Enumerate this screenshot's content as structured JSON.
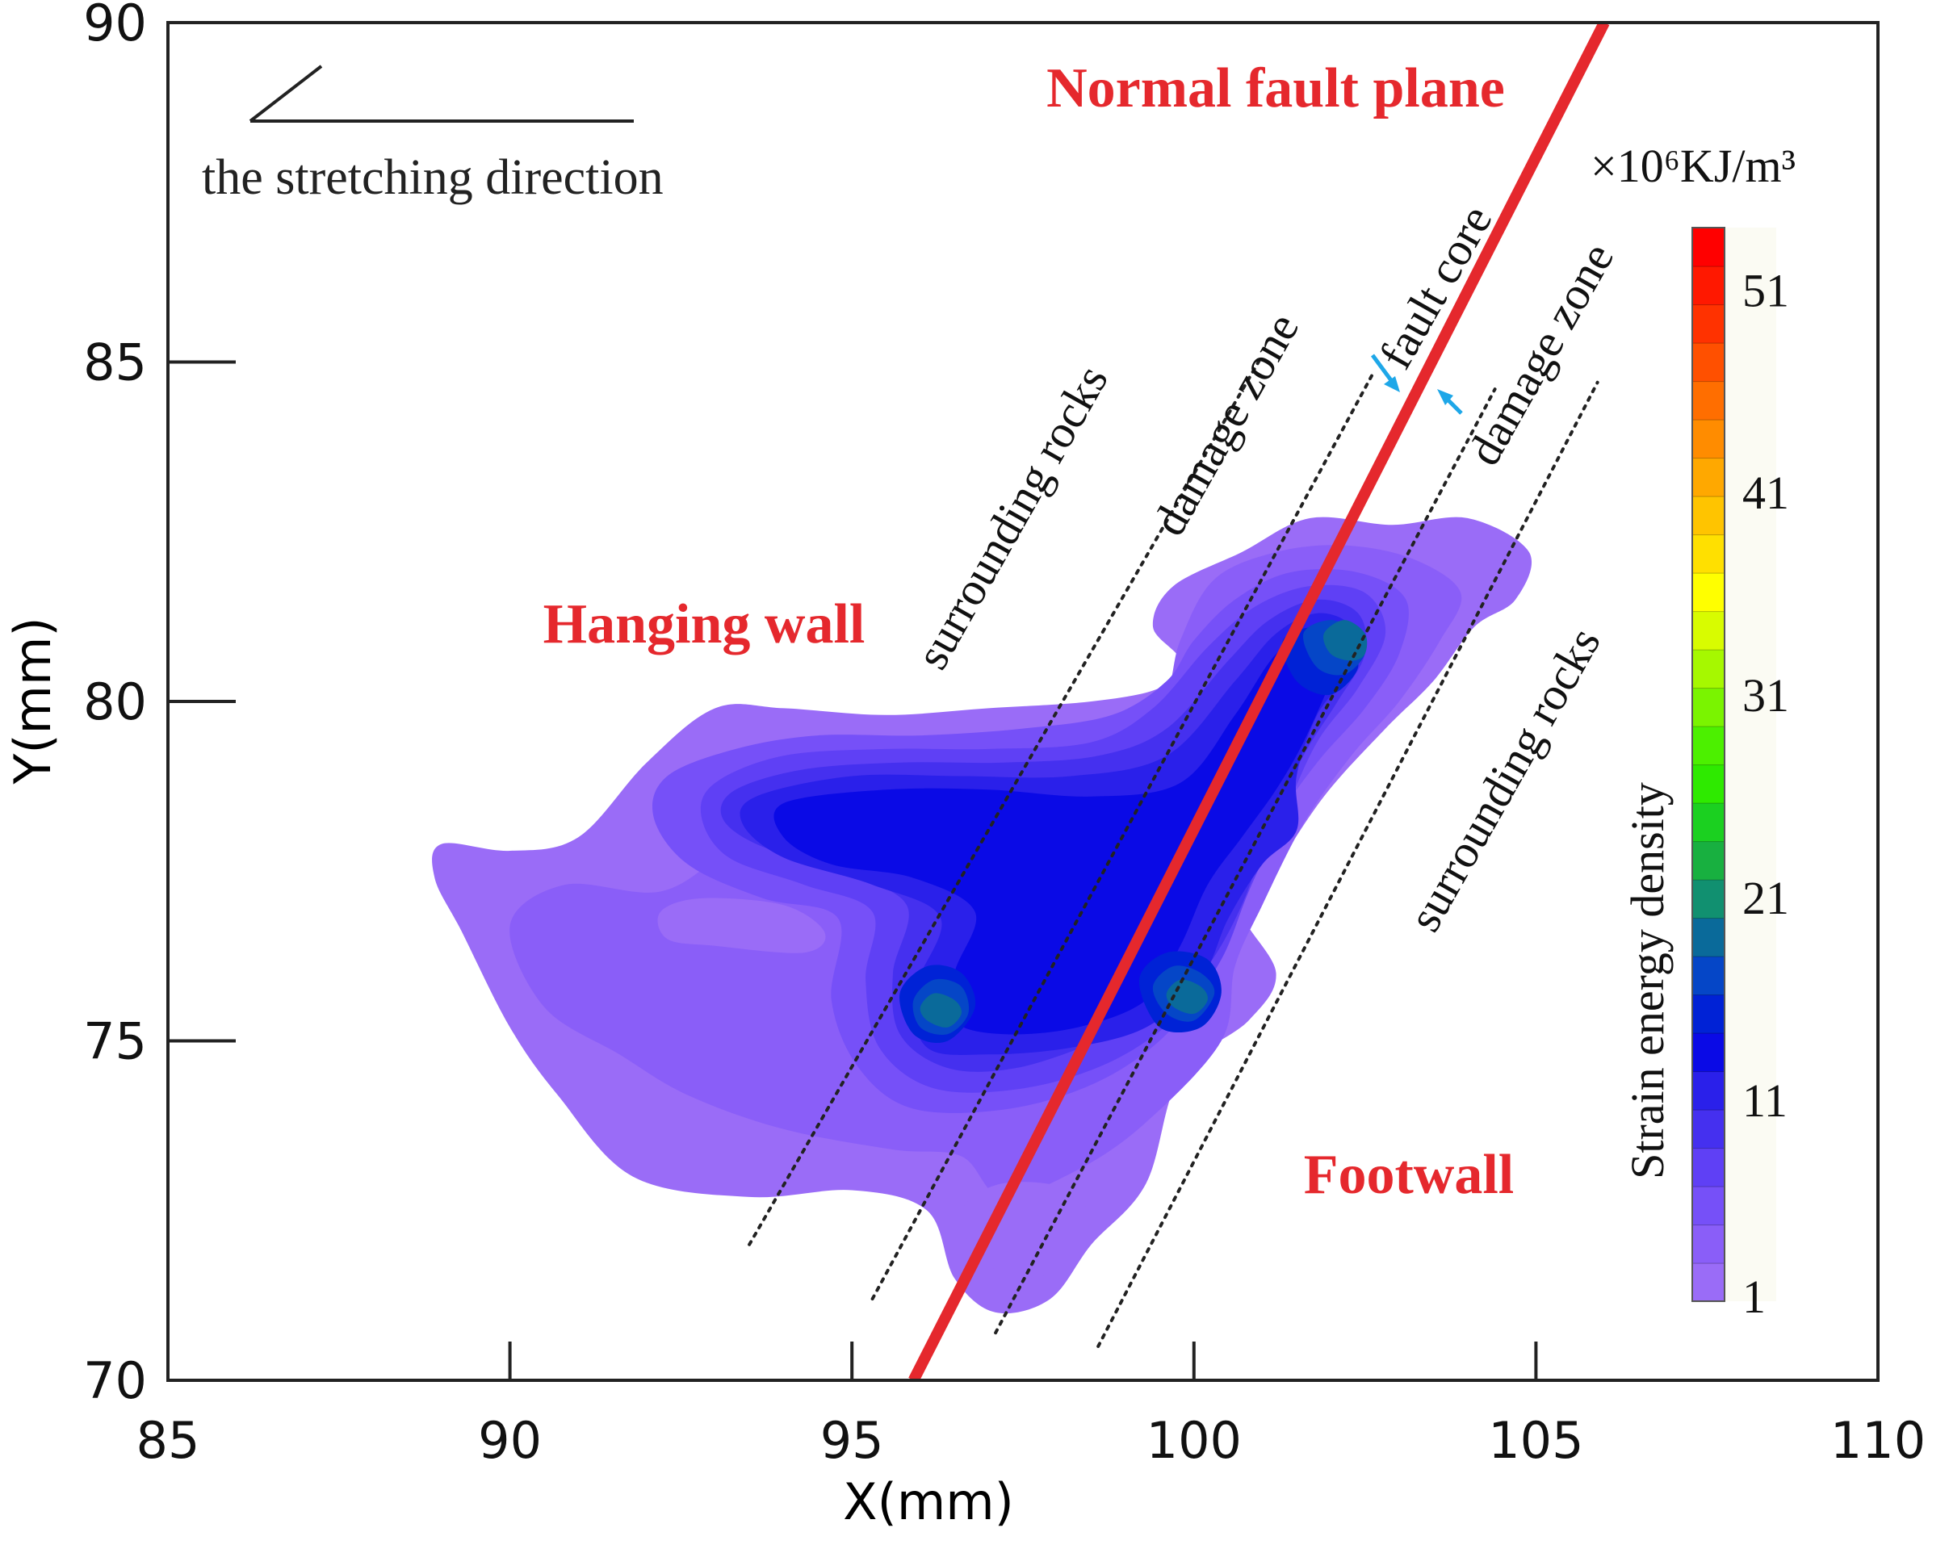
{
  "chart_data": {
    "type": "heatmap",
    "title": "",
    "xlabel": "X(mm)",
    "ylabel": "Y(mm)",
    "xlim": [
      85,
      110
    ],
    "ylim": [
      70,
      90
    ],
    "x_ticks": [
      85,
      90,
      95,
      100,
      105,
      110
    ],
    "y_ticks": [
      70,
      75,
      80,
      85,
      90
    ],
    "x_tick_labels": [
      "85",
      "90",
      "95",
      "100",
      "105",
      "110"
    ],
    "y_tick_labels": [
      "70",
      "75",
      "80",
      "85",
      "90"
    ],
    "colorbar": {
      "title": "Strain energy density",
      "unit": "×10⁶KJ/m³",
      "min": 1,
      "max": 54,
      "tick_values": [
        1,
        11,
        21,
        31,
        41,
        51
      ],
      "tick_labels": [
        "1",
        "11",
        "21",
        "31",
        "41",
        "51"
      ],
      "levels": [
        "#9a6cf7",
        "#8a5ef8",
        "#7650f8",
        "#5f40f5",
        "#4530ef",
        "#2a20ea",
        "#0a0ae6",
        "#0022d6",
        "#0546c7",
        "#0a6a9a",
        "#119070",
        "#18b040",
        "#1bd020",
        "#2eea00",
        "#4cf000",
        "#7af400",
        "#a6f800",
        "#d8fc00",
        "#ffff00",
        "#ffe000",
        "#ffc400",
        "#ffa800",
        "#ff8c00",
        "#ff6e00",
        "#ff5000",
        "#ff3200",
        "#ff1800",
        "#ff0000"
      ]
    },
    "fault_plane": {
      "label": "Normal fault plane",
      "line": [
        [
          95.9,
          70.0
        ],
        [
          106.0,
          90.0
        ]
      ],
      "color": "#e5282d"
    },
    "zone_boundaries": [
      [
        [
          93.5,
          72.0
        ],
        [
          101.0,
          85.1
        ]
      ],
      [
        [
          95.3,
          71.2
        ],
        [
          102.6,
          84.8
        ]
      ],
      [
        [
          97.1,
          70.7
        ],
        [
          104.4,
          84.6
        ]
      ],
      [
        [
          98.6,
          70.5
        ],
        [
          105.9,
          84.7
        ]
      ]
    ],
    "zone_labels": [
      "surrounding rocks",
      "damage zone",
      "fault core",
      "damage zone",
      "surrounding rocks"
    ],
    "region_labels": {
      "hanging_wall": "Hanging wall",
      "footwall": "Footwall",
      "color": "#e5282d"
    },
    "stretching_direction": {
      "label": "the stretching direction"
    },
    "contours": [
      {
        "level": 1,
        "polygon": [
          [
            89.0,
            77.9
          ],
          [
            90.0,
            77.8
          ],
          [
            91.0,
            78.0
          ],
          [
            92.0,
            79.1
          ],
          [
            93.0,
            79.9
          ],
          [
            94.0,
            79.9
          ],
          [
            95.5,
            79.8
          ],
          [
            97.0,
            79.9
          ],
          [
            98.5,
            80.0
          ],
          [
            99.5,
            80.2
          ],
          [
            99.8,
            80.6
          ],
          [
            99.4,
            81.1
          ],
          [
            99.7,
            81.7
          ],
          [
            100.7,
            82.2
          ],
          [
            101.7,
            82.7
          ],
          [
            102.9,
            82.6
          ],
          [
            104.0,
            82.7
          ],
          [
            104.9,
            82.2
          ],
          [
            104.7,
            81.5
          ],
          [
            104.1,
            81.1
          ],
          [
            103.5,
            80.3
          ],
          [
            102.8,
            79.6
          ],
          [
            101.9,
            78.6
          ],
          [
            101.1,
            77.4
          ],
          [
            100.7,
            76.9
          ],
          [
            101.2,
            76.0
          ],
          [
            100.8,
            75.3
          ],
          [
            99.8,
            74.5
          ],
          [
            99.3,
            72.9
          ],
          [
            98.5,
            72.0
          ],
          [
            97.9,
            71.2
          ],
          [
            97.1,
            71.0
          ],
          [
            96.5,
            71.5
          ],
          [
            96.1,
            72.5
          ],
          [
            95.0,
            72.8
          ],
          [
            93.5,
            72.7
          ],
          [
            91.8,
            73.0
          ],
          [
            90.7,
            74.2
          ],
          [
            90.0,
            75.2
          ],
          [
            89.3,
            76.6
          ],
          [
            88.9,
            77.4
          ]
        ]
      },
      {
        "level": 2,
        "polygon": [
          [
            90.0,
            76.7
          ],
          [
            90.8,
            77.3
          ],
          [
            92.2,
            77.2
          ],
          [
            93.2,
            77.8
          ],
          [
            94.3,
            78.4
          ],
          [
            95.6,
            78.8
          ],
          [
            97.0,
            78.9
          ],
          [
            98.5,
            79.2
          ],
          [
            99.5,
            79.9
          ],
          [
            99.8,
            80.9
          ],
          [
            100.3,
            81.8
          ],
          [
            101.2,
            82.2
          ],
          [
            102.2,
            82.3
          ],
          [
            103.2,
            82.1
          ],
          [
            103.9,
            81.6
          ],
          [
            103.6,
            80.9
          ],
          [
            103.0,
            80.0
          ],
          [
            102.3,
            79.2
          ],
          [
            101.6,
            78.2
          ],
          [
            101.0,
            77.0
          ],
          [
            100.6,
            76.1
          ],
          [
            100.4,
            75.0
          ],
          [
            99.3,
            73.8
          ],
          [
            98.3,
            73.1
          ],
          [
            97.2,
            72.7
          ],
          [
            96.6,
            73.3
          ],
          [
            95.6,
            73.4
          ],
          [
            94.0,
            73.7
          ],
          [
            92.6,
            74.2
          ],
          [
            91.6,
            74.8
          ],
          [
            90.5,
            75.5
          ]
        ]
      },
      {
        "level": 3,
        "polygon": [
          [
            92.3,
            78.9
          ],
          [
            93.3,
            79.3
          ],
          [
            94.5,
            79.5
          ],
          [
            96.0,
            79.5
          ],
          [
            97.5,
            79.6
          ],
          [
            98.8,
            79.8
          ],
          [
            99.6,
            80.3
          ],
          [
            100.0,
            80.9
          ],
          [
            100.6,
            81.5
          ],
          [
            101.4,
            81.9
          ],
          [
            102.4,
            81.9
          ],
          [
            103.1,
            81.5
          ],
          [
            103.0,
            80.7
          ],
          [
            102.5,
            79.9
          ],
          [
            101.8,
            79.1
          ],
          [
            101.1,
            78.1
          ],
          [
            100.5,
            77.0
          ],
          [
            100.2,
            76.0
          ],
          [
            99.6,
            75.1
          ],
          [
            98.6,
            74.4
          ],
          [
            97.3,
            74.0
          ],
          [
            95.9,
            74.0
          ],
          [
            95.1,
            74.6
          ],
          [
            94.7,
            75.6
          ],
          [
            94.8,
            76.8
          ],
          [
            93.7,
            77.1
          ],
          [
            92.6,
            77.6
          ],
          [
            92.1,
            78.3
          ]
        ]
      },
      {
        "level": 4,
        "polygon": [
          [
            93.0,
            78.8
          ],
          [
            94.0,
            79.2
          ],
          [
            95.5,
            79.3
          ],
          [
            97.0,
            79.3
          ],
          [
            98.5,
            79.4
          ],
          [
            99.4,
            79.9
          ],
          [
            100.2,
            80.8
          ],
          [
            100.9,
            81.4
          ],
          [
            101.7,
            81.7
          ],
          [
            102.5,
            81.6
          ],
          [
            102.8,
            81.0
          ],
          [
            102.4,
            80.2
          ],
          [
            101.8,
            79.4
          ],
          [
            101.3,
            78.3
          ],
          [
            100.8,
            77.2
          ],
          [
            100.4,
            76.2
          ],
          [
            99.8,
            75.4
          ],
          [
            98.8,
            74.7
          ],
          [
            97.5,
            74.3
          ],
          [
            96.2,
            74.3
          ],
          [
            95.4,
            74.9
          ],
          [
            95.2,
            75.9
          ],
          [
            95.3,
            76.9
          ],
          [
            94.3,
            77.3
          ],
          [
            93.2,
            77.7
          ],
          [
            92.8,
            78.3
          ]
        ]
      },
      {
        "level": 5,
        "polygon": [
          [
            93.3,
            78.7
          ],
          [
            94.3,
            79.0
          ],
          [
            95.7,
            79.1
          ],
          [
            97.2,
            79.1
          ],
          [
            98.6,
            79.2
          ],
          [
            99.6,
            79.6
          ],
          [
            100.5,
            80.6
          ],
          [
            101.1,
            81.2
          ],
          [
            101.8,
            81.5
          ],
          [
            102.4,
            81.3
          ],
          [
            102.5,
            80.7
          ],
          [
            102.1,
            80.0
          ],
          [
            101.6,
            79.2
          ],
          [
            101.1,
            78.1
          ],
          [
            100.7,
            77.0
          ],
          [
            100.2,
            76.1
          ],
          [
            99.6,
            75.5
          ],
          [
            98.6,
            75.0
          ],
          [
            97.4,
            74.6
          ],
          [
            96.4,
            74.6
          ],
          [
            95.7,
            75.1
          ],
          [
            95.6,
            76.0
          ],
          [
            95.8,
            77.0
          ],
          [
            94.8,
            77.5
          ],
          [
            93.6,
            77.9
          ],
          [
            93.1,
            78.3
          ]
        ]
      },
      {
        "level": 6,
        "polygon": [
          [
            93.6,
            78.6
          ],
          [
            95.0,
            78.9
          ],
          [
            96.6,
            78.9
          ],
          [
            98.2,
            78.9
          ],
          [
            99.6,
            79.2
          ],
          [
            100.6,
            80.3
          ],
          [
            101.2,
            81.0
          ],
          [
            101.8,
            81.3
          ],
          [
            102.3,
            81.1
          ],
          [
            102.3,
            80.5
          ],
          [
            101.8,
            79.8
          ],
          [
            101.5,
            78.9
          ],
          [
            101.5,
            78.1
          ],
          [
            101.0,
            77.6
          ],
          [
            100.5,
            76.8
          ],
          [
            100.1,
            75.9
          ],
          [
            99.3,
            75.2
          ],
          [
            98.2,
            74.9
          ],
          [
            97.0,
            74.8
          ],
          [
            96.1,
            74.9
          ],
          [
            95.9,
            75.7
          ],
          [
            96.3,
            76.8
          ],
          [
            95.3,
            77.3
          ],
          [
            94.0,
            77.7
          ],
          [
            93.4,
            78.2
          ]
        ]
      },
      {
        "level": 7,
        "polygon": [
          [
            94.0,
            78.5
          ],
          [
            95.5,
            78.7
          ],
          [
            97.0,
            78.7
          ],
          [
            98.5,
            78.6
          ],
          [
            99.8,
            78.8
          ],
          [
            100.6,
            79.8
          ],
          [
            101.2,
            80.7
          ],
          [
            101.8,
            81.1
          ],
          [
            102.2,
            80.9
          ],
          [
            102.0,
            80.3
          ],
          [
            101.6,
            79.4
          ],
          [
            101.2,
            78.7
          ],
          [
            100.7,
            78.0
          ],
          [
            100.2,
            77.3
          ],
          [
            99.8,
            76.4
          ],
          [
            99.3,
            75.6
          ],
          [
            98.3,
            75.2
          ],
          [
            97.2,
            75.1
          ],
          [
            96.5,
            75.3
          ],
          [
            96.5,
            76.0
          ],
          [
            96.8,
            76.9
          ],
          [
            95.9,
            77.4
          ],
          [
            94.7,
            77.6
          ],
          [
            94.0,
            78.0
          ]
        ]
      },
      {
        "level": 8,
        "polygon": [
          [
            101.3,
            80.9
          ],
          [
            101.8,
            81.1
          ],
          [
            102.2,
            80.9
          ],
          [
            102.4,
            80.5
          ],
          [
            102.0,
            80.1
          ],
          [
            101.5,
            80.3
          ]
        ]
      },
      {
        "level": 8,
        "polygon": [
          [
            95.7,
            75.7
          ],
          [
            96.1,
            76.1
          ],
          [
            96.6,
            76.0
          ],
          [
            96.8,
            75.5
          ],
          [
            96.4,
            75.0
          ],
          [
            95.9,
            75.1
          ]
        ]
      },
      {
        "level": 8,
        "polygon": [
          [
            99.2,
            75.9
          ],
          [
            99.6,
            76.3
          ],
          [
            100.2,
            76.2
          ],
          [
            100.4,
            75.7
          ],
          [
            100.1,
            75.2
          ],
          [
            99.5,
            75.2
          ]
        ]
      },
      {
        "level": 9,
        "polygon": [
          [
            101.6,
            81.0
          ],
          [
            102.0,
            81.2
          ],
          [
            102.4,
            81.0
          ],
          [
            102.5,
            80.7
          ],
          [
            102.2,
            80.4
          ],
          [
            101.8,
            80.5
          ]
        ]
      },
      {
        "level": 9,
        "polygon": [
          [
            95.9,
            75.6
          ],
          [
            96.2,
            75.9
          ],
          [
            96.6,
            75.8
          ],
          [
            96.7,
            75.4
          ],
          [
            96.4,
            75.1
          ],
          [
            96.0,
            75.2
          ]
        ]
      },
      {
        "level": 9,
        "polygon": [
          [
            99.4,
            75.8
          ],
          [
            99.7,
            76.1
          ],
          [
            100.1,
            76.0
          ],
          [
            100.3,
            75.7
          ],
          [
            100.0,
            75.3
          ],
          [
            99.6,
            75.4
          ]
        ]
      },
      {
        "level": 10,
        "polygon": [
          [
            101.9,
            81.0
          ],
          [
            102.2,
            81.2
          ],
          [
            102.5,
            81.0
          ],
          [
            102.5,
            80.7
          ],
          [
            102.3,
            80.6
          ],
          [
            102.0,
            80.7
          ]
        ]
      },
      {
        "level": 10,
        "polygon": [
          [
            96.0,
            75.5
          ],
          [
            96.2,
            75.7
          ],
          [
            96.5,
            75.6
          ],
          [
            96.6,
            75.4
          ],
          [
            96.4,
            75.2
          ],
          [
            96.1,
            75.3
          ]
        ]
      },
      {
        "level": 10,
        "polygon": [
          [
            99.6,
            75.7
          ],
          [
            99.8,
            75.9
          ],
          [
            100.1,
            75.8
          ],
          [
            100.2,
            75.6
          ],
          [
            100.0,
            75.4
          ],
          [
            99.7,
            75.5
          ]
        ]
      },
      {
        "level": 1,
        "polygon": [
          [
            92.2,
            76.9
          ],
          [
            92.8,
            77.1
          ],
          [
            94.0,
            77.0
          ],
          [
            94.6,
            76.6
          ],
          [
            94.3,
            76.3
          ],
          [
            93.0,
            76.4
          ],
          [
            92.3,
            76.5
          ]
        ]
      },
      {
        "level": 1,
        "polygon": [
          [
            96.6,
            72.5
          ],
          [
            97.2,
            72.9
          ],
          [
            98.2,
            72.8
          ],
          [
            98.5,
            72.2
          ],
          [
            98.2,
            71.7
          ],
          [
            97.4,
            71.5
          ],
          [
            96.8,
            71.9
          ]
        ]
      }
    ]
  }
}
